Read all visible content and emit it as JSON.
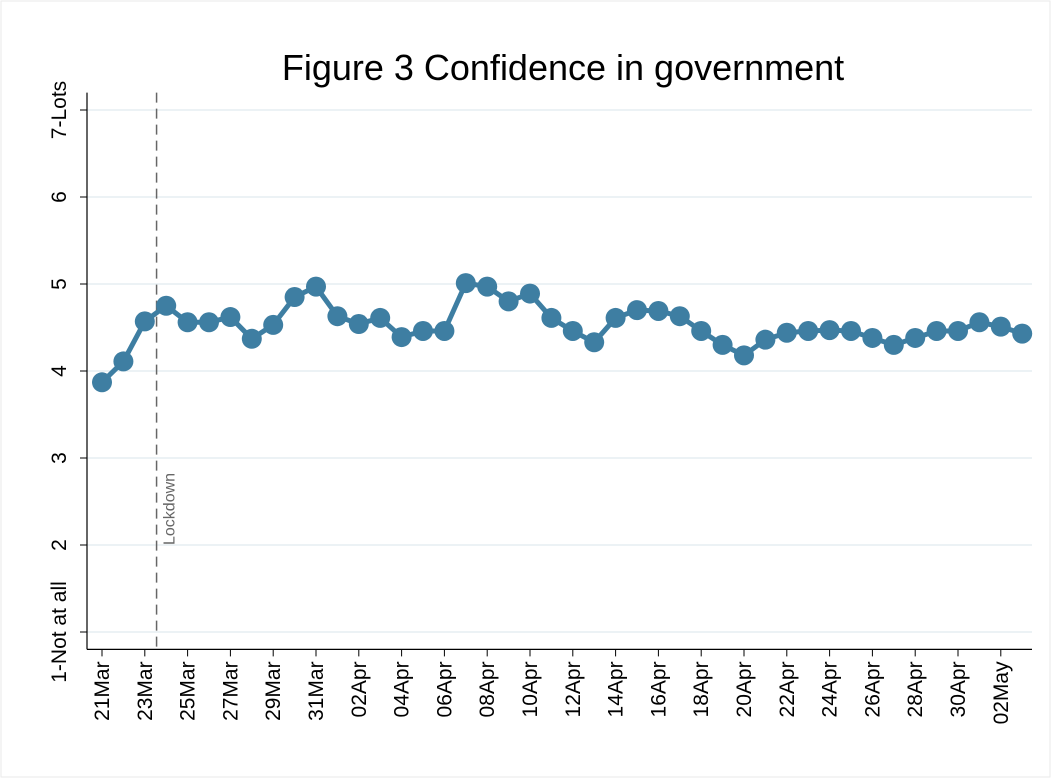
{
  "chart_data": {
    "type": "line",
    "title": "Figure 3 Confidence in government",
    "categories": [
      "21Mar",
      null,
      "23Mar",
      null,
      "25Mar",
      null,
      "27Mar",
      null,
      "29Mar",
      null,
      "31Mar",
      null,
      "02Apr",
      null,
      "04Apr",
      null,
      "06Apr",
      null,
      "08Apr",
      null,
      "10Apr",
      null,
      "12Apr",
      null,
      "14Apr",
      null,
      "16Apr",
      null,
      "18Apr",
      null,
      "20Apr",
      null,
      "22Apr",
      null,
      "24Apr",
      null,
      "26Apr",
      null,
      "28Apr",
      null,
      "30Apr",
      null,
      "02May",
      null
    ],
    "values": [
      3.87,
      4.11,
      4.57,
      4.75,
      4.56,
      4.56,
      4.62,
      4.37,
      4.53,
      4.85,
      4.97,
      4.63,
      4.54,
      4.61,
      4.39,
      4.46,
      4.46,
      5.01,
      4.97,
      4.8,
      4.89,
      4.61,
      4.46,
      4.33,
      4.61,
      4.7,
      4.69,
      4.63,
      4.46,
      4.3,
      4.18,
      4.36,
      4.44,
      4.46,
      4.47,
      4.46,
      4.38,
      4.3,
      4.38,
      4.46,
      4.46,
      4.56,
      4.51,
      4.43
    ],
    "color": "#3e7ea2",
    "ylim": [
      0.8,
      7.2
    ],
    "yticks": [
      {
        "value": 1,
        "label": "1-Not at all"
      },
      2,
      3,
      4,
      5,
      6,
      {
        "value": 7,
        "label": "7-Lots"
      }
    ],
    "grid": true,
    "vline": {
      "label": "Lockdown",
      "at": 2.55
    }
  }
}
